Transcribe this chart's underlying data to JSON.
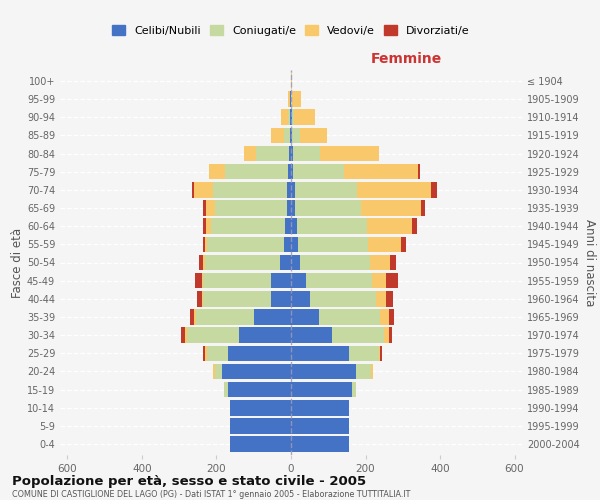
{
  "age_groups": [
    "0-4",
    "5-9",
    "10-14",
    "15-19",
    "20-24",
    "25-29",
    "30-34",
    "35-39",
    "40-44",
    "45-49",
    "50-54",
    "55-59",
    "60-64",
    "65-69",
    "70-74",
    "75-79",
    "80-84",
    "85-89",
    "90-94",
    "95-99",
    "100+"
  ],
  "birth_years": [
    "2000-2004",
    "1995-1999",
    "1990-1994",
    "1985-1989",
    "1980-1984",
    "1975-1979",
    "1970-1974",
    "1965-1969",
    "1960-1964",
    "1955-1959",
    "1950-1954",
    "1945-1949",
    "1940-1944",
    "1935-1939",
    "1930-1934",
    "1925-1929",
    "1920-1924",
    "1915-1919",
    "1910-1914",
    "1905-1909",
    "≤ 1904"
  ],
  "males_celibi": [
    165,
    165,
    165,
    170,
    185,
    170,
    140,
    100,
    55,
    55,
    30,
    20,
    15,
    10,
    10,
    8,
    5,
    2,
    2,
    2,
    0
  ],
  "males_coniugati": [
    0,
    0,
    0,
    10,
    20,
    55,
    140,
    155,
    180,
    180,
    200,
    205,
    200,
    195,
    200,
    170,
    90,
    18,
    5,
    2,
    0
  ],
  "males_vedovi": [
    0,
    0,
    0,
    0,
    5,
    5,
    5,
    5,
    5,
    5,
    5,
    5,
    12,
    22,
    50,
    42,
    30,
    35,
    20,
    5,
    0
  ],
  "males_divorziati": [
    0,
    0,
    0,
    0,
    0,
    5,
    10,
    10,
    12,
    18,
    12,
    5,
    10,
    8,
    5,
    0,
    0,
    0,
    0,
    0,
    0
  ],
  "females_nubili": [
    155,
    155,
    155,
    165,
    175,
    155,
    110,
    75,
    50,
    40,
    25,
    20,
    15,
    10,
    10,
    5,
    5,
    2,
    2,
    1,
    1
  ],
  "females_coniugate": [
    0,
    0,
    0,
    10,
    40,
    80,
    140,
    165,
    178,
    178,
    188,
    188,
    188,
    178,
    168,
    138,
    72,
    22,
    5,
    3,
    0
  ],
  "females_vedove": [
    0,
    0,
    0,
    0,
    5,
    5,
    12,
    22,
    28,
    38,
    52,
    88,
    122,
    162,
    198,
    198,
    158,
    72,
    58,
    22,
    2
  ],
  "females_divorziate": [
    0,
    0,
    0,
    0,
    0,
    5,
    10,
    15,
    18,
    32,
    18,
    12,
    12,
    10,
    15,
    5,
    0,
    0,
    0,
    0,
    0
  ],
  "colors": {
    "celibi": "#4472C4",
    "coniugati": "#C5D9A0",
    "vedovi": "#F8C86A",
    "divorziati": "#C0392B"
  },
  "title": "Popolazione per età, sesso e stato civile - 2005",
  "subtitle": "COMUNE DI CASTIGLIONE DEL LAGO (PG) - Dati ISTAT 1° gennaio 2005 - Elaborazione TUTTITALIA.IT",
  "ylabel_left": "Fasce di età",
  "ylabel_right": "Anni di nascita",
  "xlabel_right": "Femmine",
  "xlim": 620,
  "background_color": "#f5f5f5",
  "legend_labels": [
    "Celibi/Nubili",
    "Coniugati/e",
    "Vedovi/e",
    "Divorziati/e"
  ]
}
